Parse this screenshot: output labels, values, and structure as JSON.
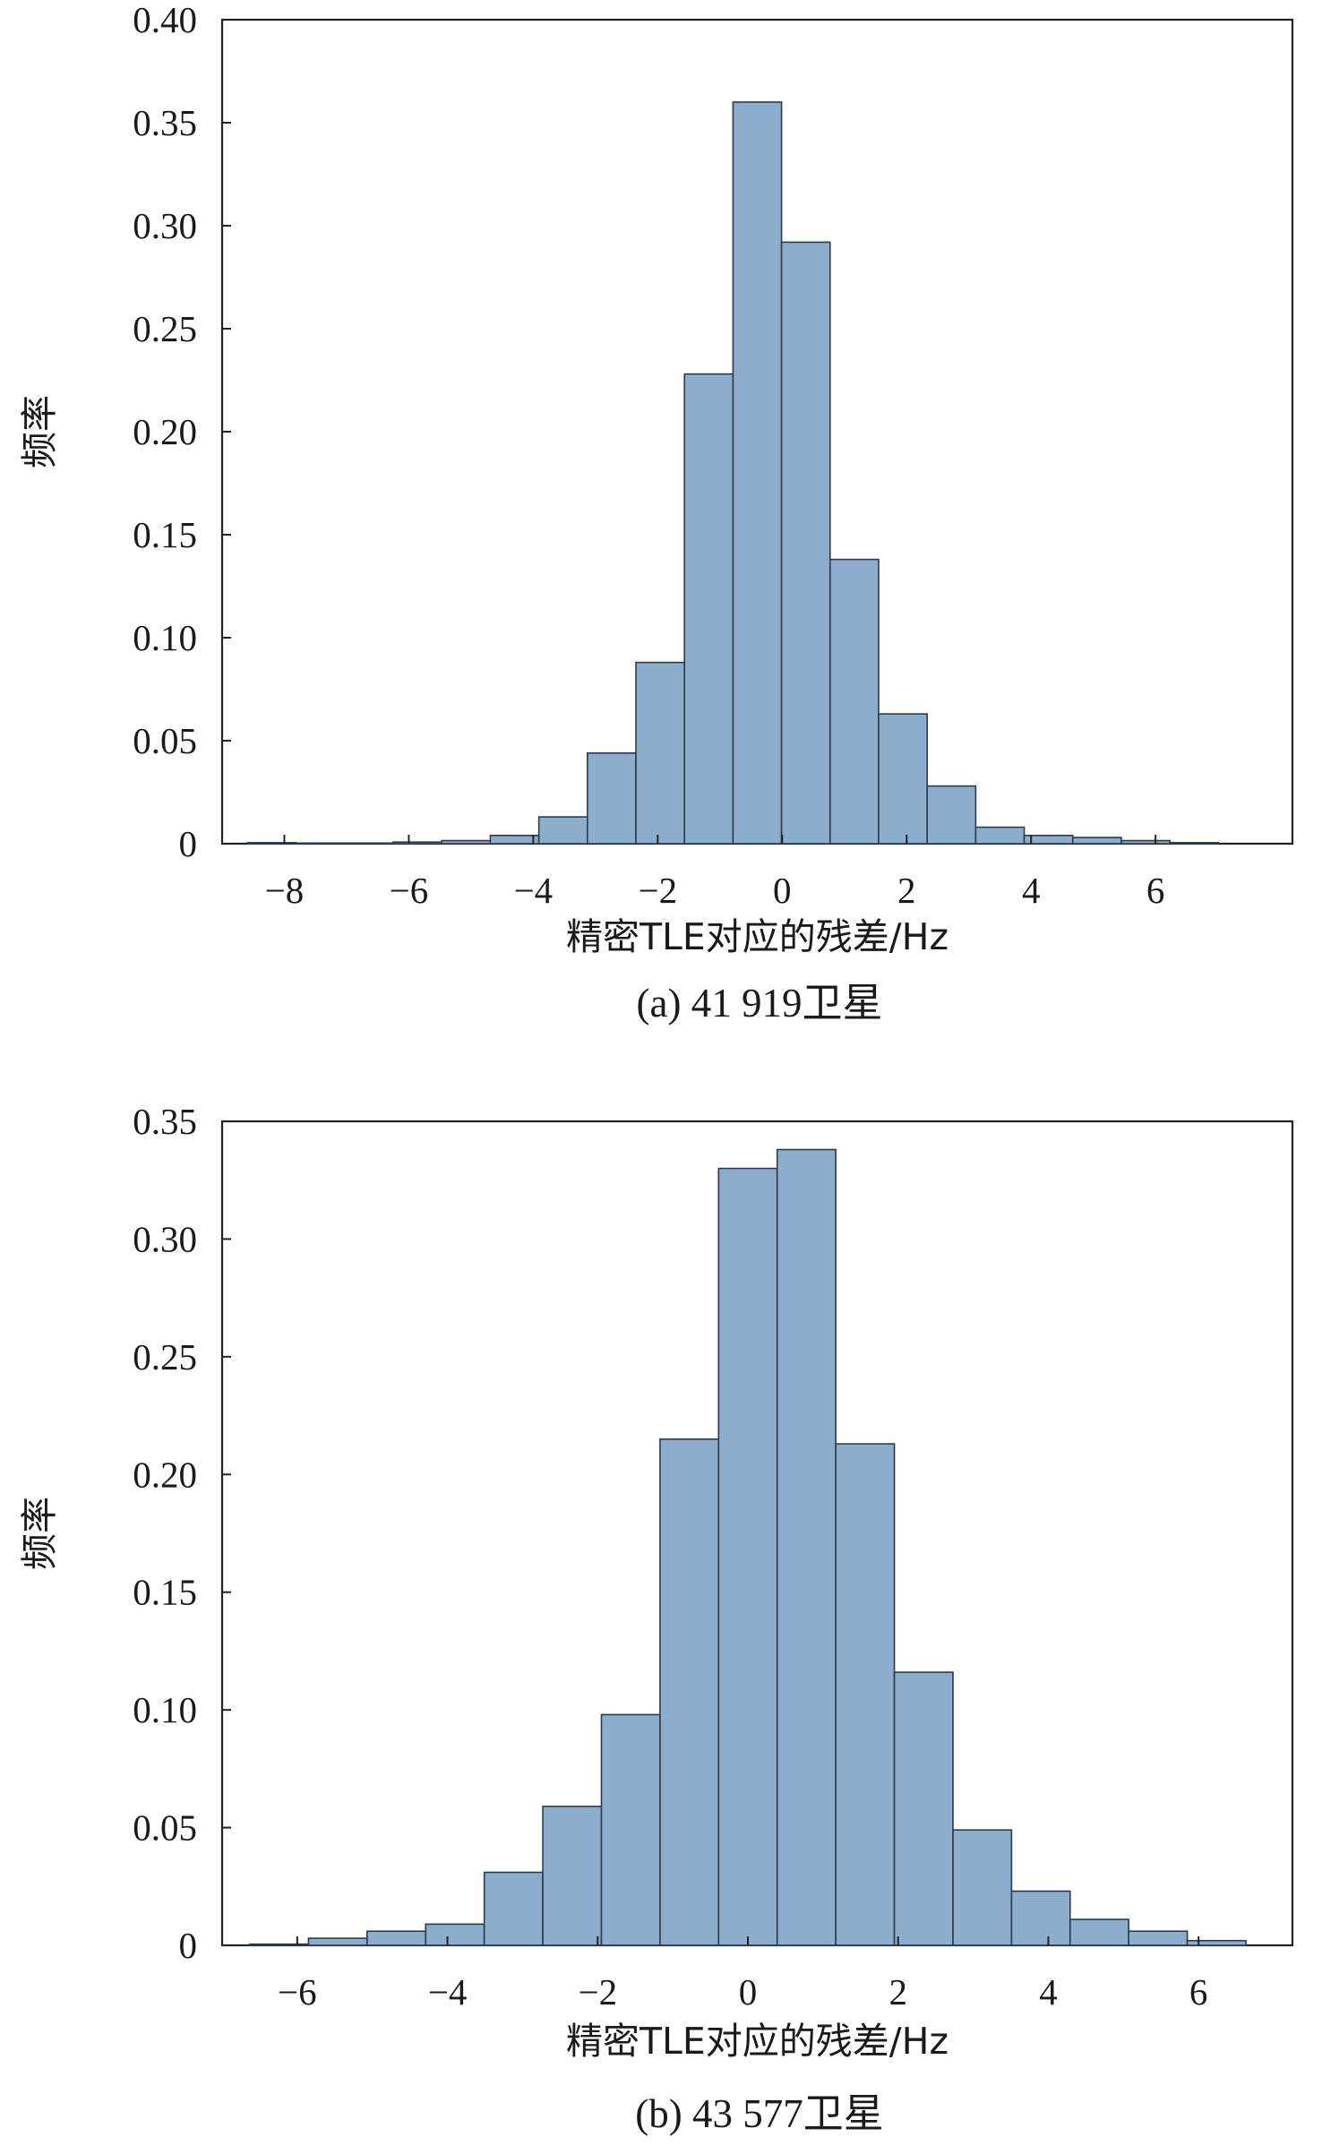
{
  "chart_data": [
    {
      "type": "bar",
      "caption": "(a) 41 919卫星",
      "xlabel": "精密TLE对应的残差/Hz",
      "ylabel": "频率",
      "bin_width": 0.78,
      "xlim": [
        -9.0,
        8.2
      ],
      "ylim": [
        0,
        0.4
      ],
      "xticks": [
        -8,
        -6,
        -4,
        -2,
        0,
        2,
        4,
        6
      ],
      "xtick_labels": [
        "−8",
        "−6",
        "−4",
        "−2",
        "0",
        "2",
        "4",
        "6"
      ],
      "yticks": [
        0,
        0.05,
        0.1,
        0.15,
        0.2,
        0.25,
        0.3,
        0.35,
        0.4
      ],
      "ytick_labels": [
        "0",
        "0.05",
        "0.10",
        "0.15",
        "0.20",
        "0.25",
        "0.30",
        "0.35",
        "0.40"
      ],
      "bar_color": "#8cadcc",
      "bin_centers": [
        -8.2,
        -7.42,
        -6.64,
        -5.86,
        -5.08,
        -4.3,
        -3.52,
        -2.74,
        -1.96,
        -1.18,
        -0.4,
        0.38,
        1.16,
        1.94,
        2.72,
        3.5,
        4.28,
        5.06,
        5.84,
        6.62
      ],
      "values": [
        0.0005,
        0.0003,
        0.0003,
        0.0008,
        0.0015,
        0.004,
        0.013,
        0.044,
        0.088,
        0.228,
        0.36,
        0.292,
        0.138,
        0.063,
        0.028,
        0.008,
        0.004,
        0.003,
        0.0015,
        0.0005
      ]
    },
    {
      "type": "bar",
      "caption": "(b) 43 577卫星",
      "xlabel": "精密TLE对应的残差/Hz",
      "ylabel": "频率",
      "bin_width": 0.78,
      "xlim": [
        -7.0,
        7.25
      ],
      "ylim": [
        0,
        0.35
      ],
      "xticks": [
        -6,
        -4,
        -2,
        0,
        2,
        4,
        6
      ],
      "xtick_labels": [
        "−6",
        "−4",
        "−2",
        "0",
        "2",
        "4",
        "6"
      ],
      "yticks": [
        0,
        0.05,
        0.1,
        0.15,
        0.2,
        0.25,
        0.3,
        0.35
      ],
      "ytick_labels": [
        "0",
        "0.05",
        "0.10",
        "0.15",
        "0.20",
        "0.25",
        "0.30",
        "0.35"
      ],
      "bar_color": "#8cadcc",
      "bin_centers": [
        -6.24,
        -5.46,
        -4.68,
        -3.9,
        -3.12,
        -2.34,
        -1.56,
        -0.78,
        0.0,
        0.78,
        1.56,
        2.34,
        3.12,
        3.9,
        4.68,
        5.46,
        6.24
      ],
      "values": [
        0.0005,
        0.003,
        0.006,
        0.009,
        0.031,
        0.059,
        0.098,
        0.215,
        0.33,
        0.338,
        0.213,
        0.116,
        0.049,
        0.023,
        0.011,
        0.006,
        0.002
      ]
    }
  ]
}
